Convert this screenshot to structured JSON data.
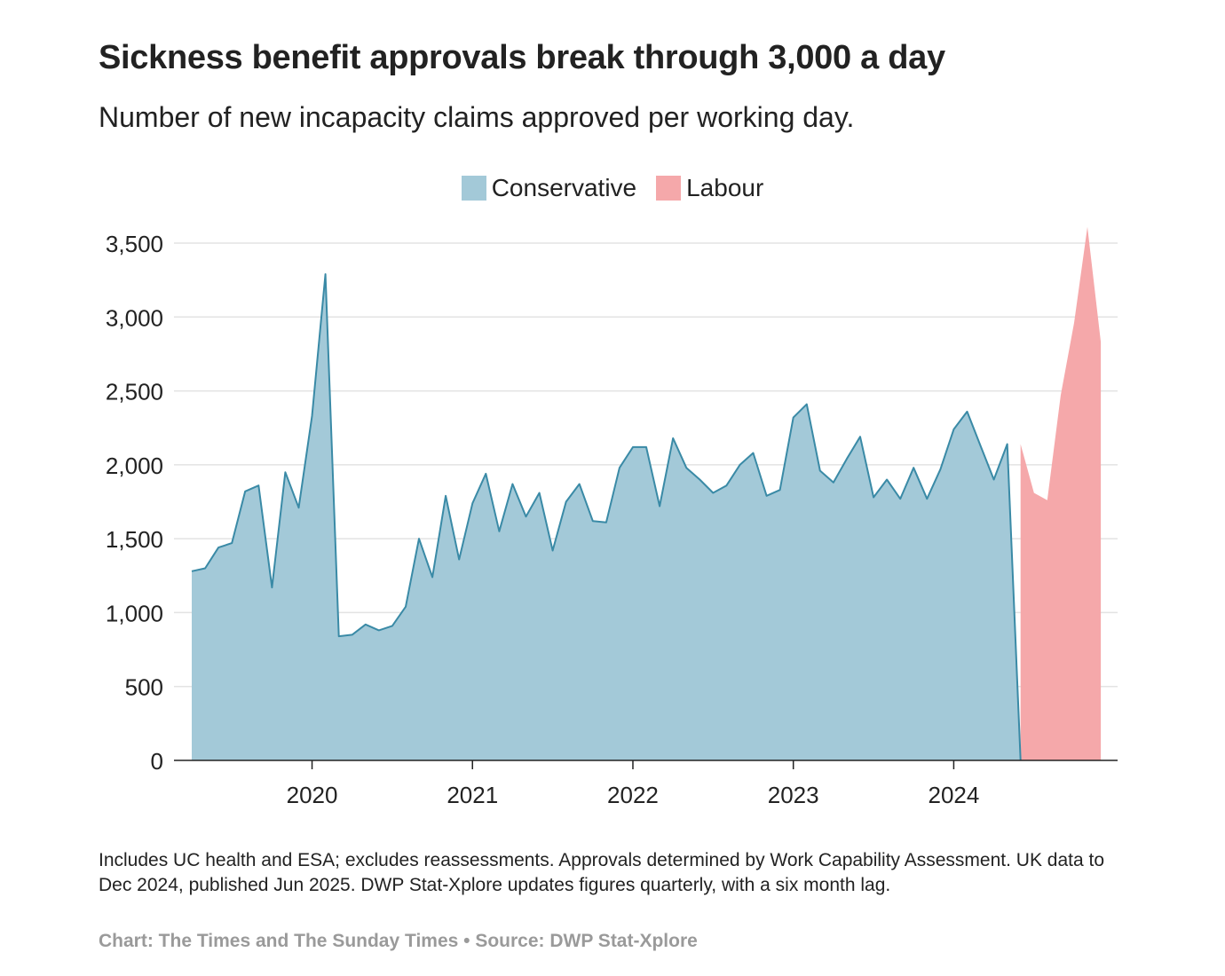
{
  "title": "Sickness benefit approvals break through 3,000 a day",
  "subtitle": "Number of new incapacity claims approved per working day.",
  "notes": "Includes UC health and ESA; excludes reassessments. Approvals determined by Work Capability Assessment. UK data to Dec 2024, published Jun 2025. DWP Stat-Xplore updates figures quarterly, with a six month lag.",
  "credit": "Chart: The Times and The Sunday Times • Source: DWP Stat-Xplore",
  "colors": {
    "conservative_fill": "#a3c9d8",
    "conservative_line": "#3a8aa6",
    "labour_fill": "#f5a8aa",
    "grid": "#e3e3e3",
    "axis": "#222222"
  },
  "chart_data": {
    "type": "area",
    "x_unit": "month",
    "x_start": "2019-04",
    "x_end": "2024-12",
    "xticks": [
      "2020",
      "2021",
      "2022",
      "2023",
      "2024"
    ],
    "yticks": [
      "0",
      "500",
      "1,000",
      "1,500",
      "2,000",
      "2,500",
      "3,000",
      "3,500"
    ],
    "ylim": [
      0,
      3500
    ],
    "grid": true,
    "legend_position": "top-center",
    "series": [
      {
        "name": "Conservative",
        "start": "2019-04",
        "values": [
          1280,
          1300,
          1440,
          1470,
          1820,
          1860,
          1170,
          1950,
          1710,
          2330,
          3290,
          840,
          850,
          920,
          880,
          910,
          1040,
          1500,
          1240,
          1790,
          1360,
          1740,
          1940,
          1550,
          1870,
          1650,
          1810,
          1420,
          1750,
          1870,
          1620,
          1610,
          1980,
          2120,
          2120,
          1720,
          2180,
          1980,
          1900,
          1810,
          1860,
          2000,
          2080,
          1790,
          1830,
          2320,
          2410,
          1960,
          1880,
          2040,
          2190,
          1780,
          1900,
          1770,
          1980,
          1770,
          1970,
          2240,
          2360,
          2130,
          1900,
          2140,
          0
        ]
      },
      {
        "name": "Labour",
        "start": "2024-06",
        "values": [
          2140,
          1810,
          1760,
          2470,
          2960,
          3610,
          2830
        ]
      }
    ]
  }
}
